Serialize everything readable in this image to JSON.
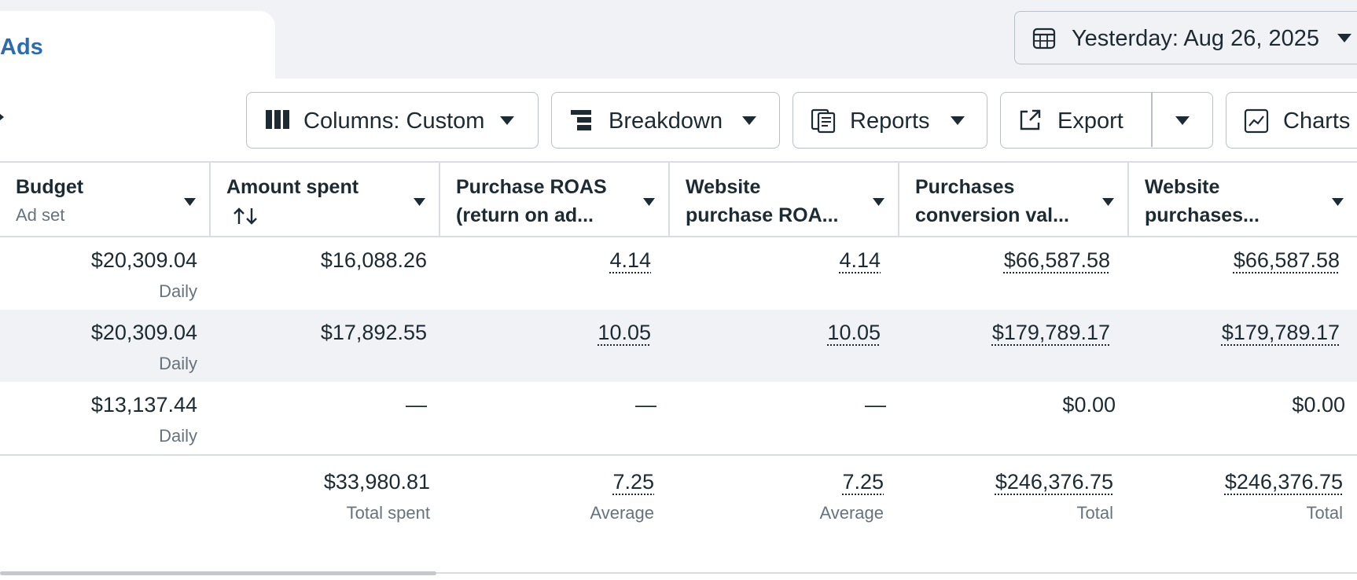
{
  "tab": {
    "label": "Ads"
  },
  "date_picker": {
    "label": "Yesterday: Aug 26, 2025"
  },
  "toolbar": {
    "columns_label": "Columns: Custom",
    "breakdown_label": "Breakdown",
    "reports_label": "Reports",
    "export_label": "Export",
    "charts_label": "Charts"
  },
  "table": {
    "headers": {
      "budget": {
        "line1": "Budget",
        "line2": "Ad set"
      },
      "amount_spent": {
        "line1": "Amount spent"
      },
      "purchase_roas": {
        "line1": "Purchase ROAS",
        "line2": "(return on ad..."
      },
      "website_roas": {
        "line1": "Website",
        "line2": "purchase ROA..."
      },
      "conversion_value": {
        "line1": "Purchases",
        "line2": "conversion val..."
      },
      "website_purchases": {
        "line1": "Website",
        "line2": "purchases..."
      }
    },
    "rows": [
      {
        "budget": "$20,309.04",
        "budget_period": "Daily",
        "amount_spent": "$16,088.26",
        "purchase_roas": "4.14",
        "website_roas": "4.14",
        "conversion_value": "$66,587.58",
        "website_purchases": "$66,587.58"
      },
      {
        "budget": "$20,309.04",
        "budget_period": "Daily",
        "amount_spent": "$17,892.55",
        "purchase_roas": "10.05",
        "website_roas": "10.05",
        "conversion_value": "$179,789.17",
        "website_purchases": "$179,789.17"
      },
      {
        "budget": "$13,137.44",
        "budget_period": "Daily",
        "amount_spent": "—",
        "purchase_roas": "—",
        "website_roas": "—",
        "conversion_value": "$0.00",
        "website_purchases": "$0.00"
      }
    ],
    "totals": {
      "amount_spent": "$33,980.81",
      "amount_spent_label": "Total spent",
      "purchase_roas": "7.25",
      "purchase_roas_label": "Average",
      "website_roas": "7.25",
      "website_roas_label": "Average",
      "conversion_value": "$246,376.75",
      "conversion_value_label": "Total",
      "website_purchases": "$246,376.75",
      "website_purchases_label": "Total"
    }
  },
  "icons": {
    "calendar": "calendar-icon",
    "columns": "columns-icon",
    "breakdown": "breakdown-icon",
    "reports": "reports-icon",
    "export": "export-icon",
    "charts": "charts-icon",
    "sort": "sort-icon",
    "caret": "caret-down-icon"
  },
  "colors": {
    "accent": "#2a6bb3",
    "row_highlight": "#f1f2f5",
    "text": "#1c2b33",
    "muted": "#65737e"
  }
}
